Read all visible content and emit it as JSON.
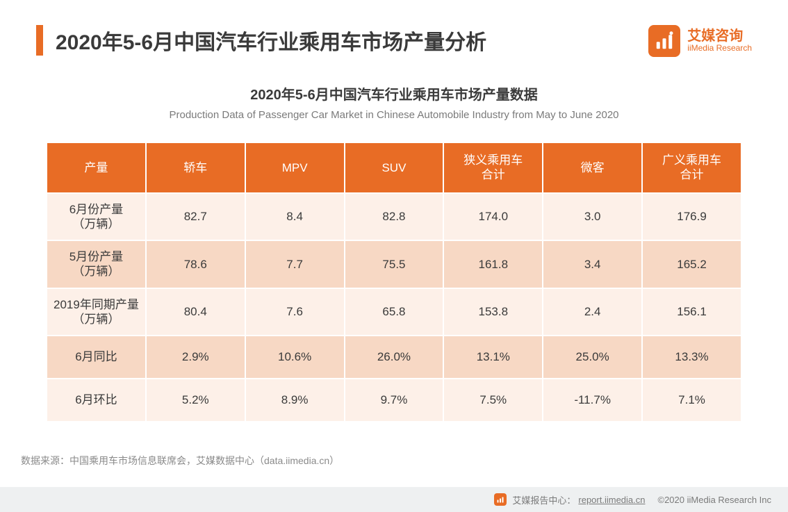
{
  "header": {
    "title": "2020年5-6月中国汽车行业乘用车市场产量分析",
    "accent_color": "#e86c25",
    "logo": {
      "cn": "艾媒咨询",
      "en": "iiMedia Research"
    }
  },
  "subtitle": {
    "cn": "2020年5-6月中国汽车行业乘用车市场产量数据",
    "en": "Production Data of Passenger Car Market in Chinese Automobile Industry from May to June 2020"
  },
  "table": {
    "type": "table",
    "header_bg": "#e86c25",
    "header_text_color": "#ffffff",
    "row_even_bg": "#fdf0e8",
    "row_odd_bg": "#f7d8c4",
    "cell_text_color": "#3a3a3a",
    "border_color": "#ffffff",
    "font_size": 17,
    "columns": [
      "产量",
      "轿车",
      "MPV",
      "SUV",
      "狭义乘用车合计",
      "微客",
      "广义乘用车合计"
    ],
    "rows": [
      {
        "label": "6月份产量（万辆）",
        "cells": [
          "82.7",
          "8.4",
          "82.8",
          "174.0",
          "3.0",
          "176.9"
        ]
      },
      {
        "label": "5月份产量（万辆）",
        "cells": [
          "78.6",
          "7.7",
          "75.5",
          "161.8",
          "3.4",
          "165.2"
        ]
      },
      {
        "label": "2019年同期产量（万辆）",
        "cells": [
          "80.4",
          "7.6",
          "65.8",
          "153.8",
          "2.4",
          "156.1"
        ]
      },
      {
        "label": "6月同比",
        "cells": [
          "2.9%",
          "10.6%",
          "26.0%",
          "13.1%",
          "25.0%",
          "13.3%"
        ]
      },
      {
        "label": "6月环比",
        "cells": [
          "5.2%",
          "8.9%",
          "9.7%",
          "7.5%",
          "-11.7%",
          "7.1%"
        ]
      }
    ]
  },
  "source": {
    "label": "数据来源：",
    "text": "中国乘用车市场信息联席会，艾媒数据中心（data.iimedia.cn）"
  },
  "footer": {
    "center_label": "艾媒报告中心：",
    "url": "report.iimedia.cn",
    "copyright": "©2020  iiMedia Research  Inc"
  },
  "colors": {
    "background": "#ffffff",
    "text_primary": "#3a3a3a",
    "text_secondary": "#7a7a7a",
    "footer_bg": "#eef0f1"
  }
}
